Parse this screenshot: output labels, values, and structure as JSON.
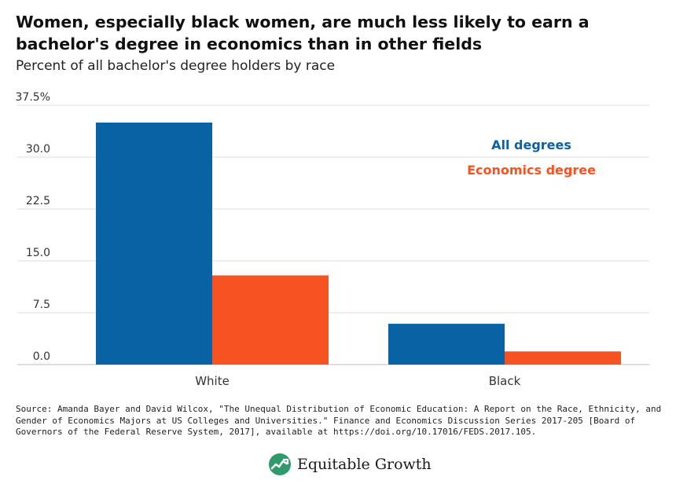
{
  "title": "Women, especially black women, are much less likely to earn a bachelor's degree in economics than in other fields",
  "subtitle": "Percent of all bachelor's degree holders by race",
  "source": "Source: Amanda Bayer and David Wilcox, \"The Unequal Distribution of Economic Education: A Report on the Race, Ethnicity, and Gender of Economics Majors at US Colleges and Universities.\" Finance and Economics Discussion Series 2017-205 [Board of Governors of the Federal Reserve System, 2017], available at https://doi.org/10.17016/FEDS.2017.105.",
  "brand": {
    "name": "Equitable Growth",
    "icon": "trend-line-logo-icon"
  },
  "colors": {
    "all_degrees": "#0862a3",
    "economics": "#f75221",
    "grid": "#dddddd",
    "text": "#222222"
  },
  "chart_data": {
    "type": "bar",
    "categories": [
      "White",
      "Black"
    ],
    "series": [
      {
        "name": "All degrees",
        "values": [
          35.0,
          5.9
        ]
      },
      {
        "name": "Economics degree",
        "values": [
          12.9,
          1.9
        ]
      }
    ],
    "ylim": [
      0,
      37.5
    ],
    "yticks": [
      "0.0",
      "7.5",
      "15.0",
      "22.5",
      "30.0",
      "37.5%"
    ],
    "ytick_values": [
      0,
      7.5,
      15,
      22.5,
      30,
      37.5
    ],
    "grid": true,
    "legend_position": "top-right"
  }
}
